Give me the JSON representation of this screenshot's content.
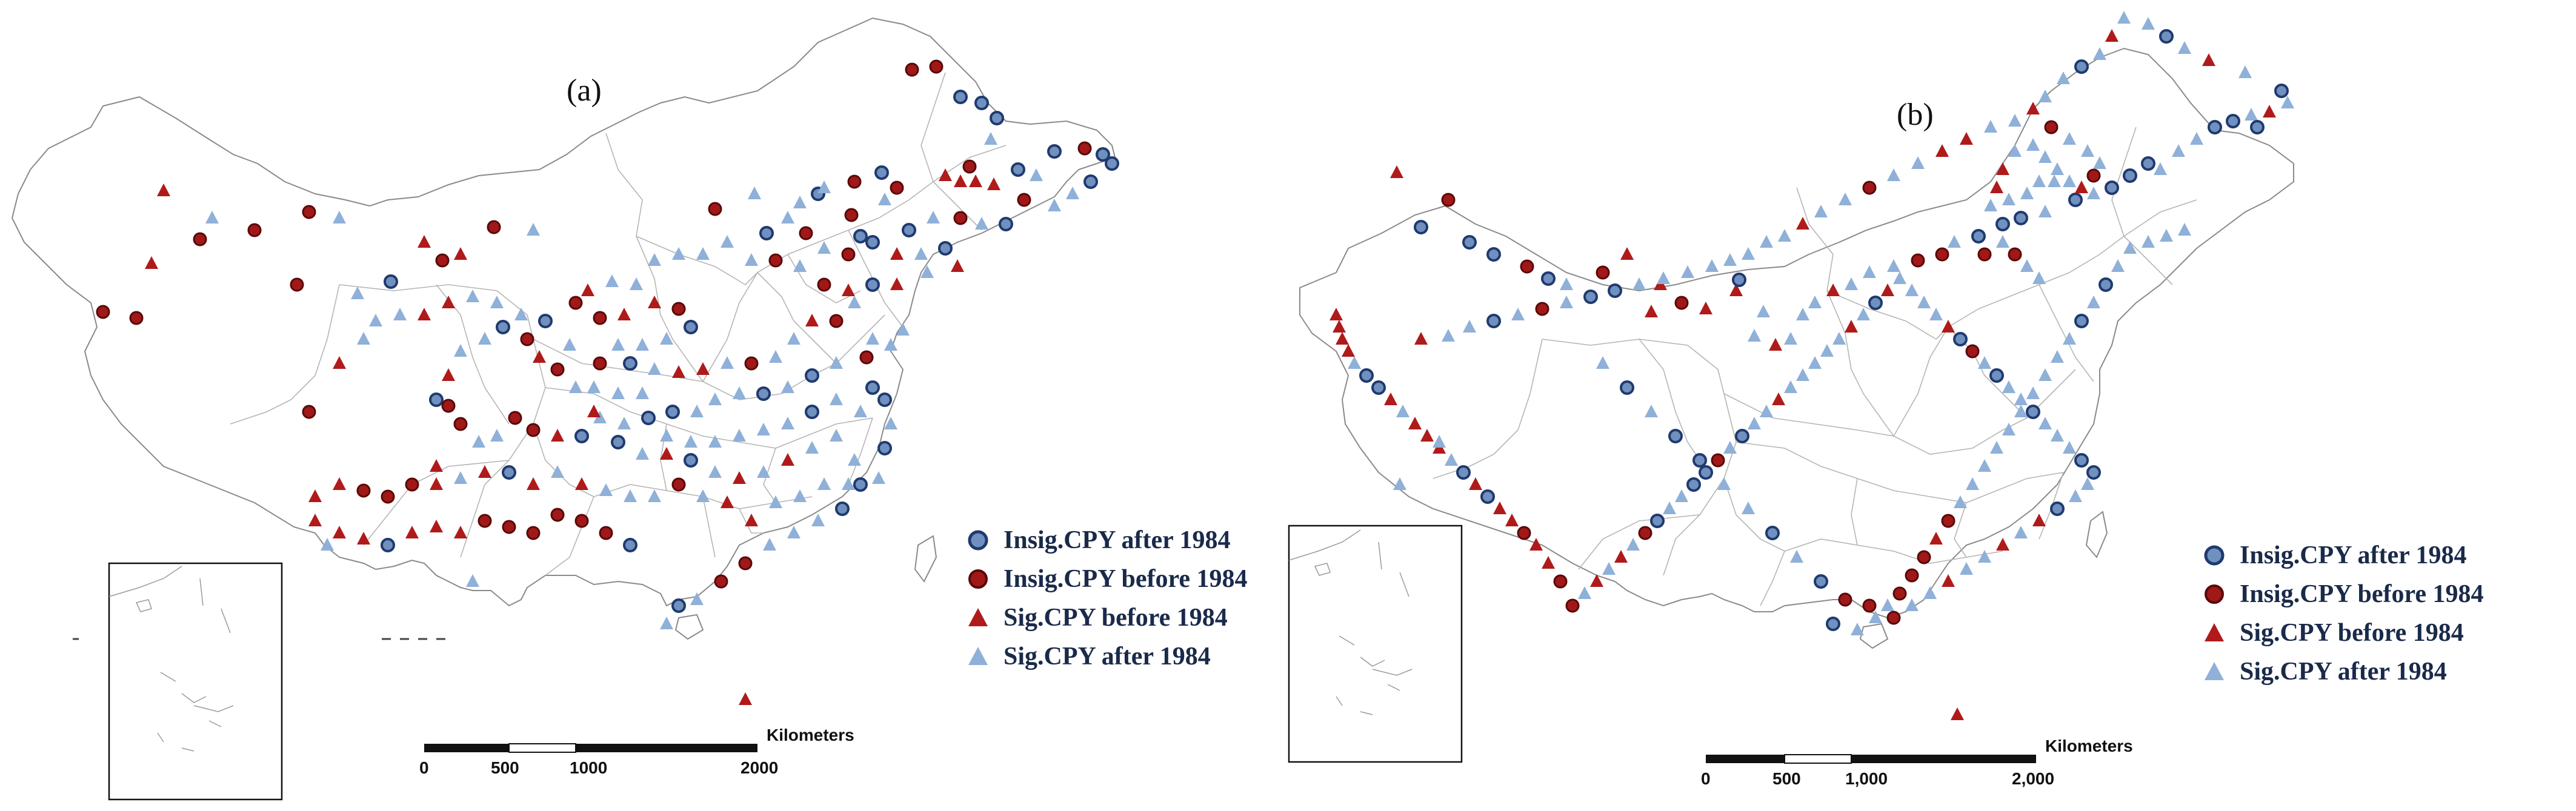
{
  "panels": [
    {
      "label": "(a)"
    },
    {
      "label": "(b)"
    }
  ],
  "legend": [
    {
      "label": "Insig.CPY after 1984",
      "symbol": "circle",
      "fill": "#7090c0",
      "stroke": "#1f3a6e"
    },
    {
      "label": "Insig.CPY before 1984",
      "symbol": "circle",
      "fill": "#a01818",
      "stroke": "#5a0808"
    },
    {
      "label": "Sig.CPY before 1984",
      "symbol": "triangle",
      "fill": "#b01a1a",
      "stroke": "#b01a1a"
    },
    {
      "label": "Sig.CPY after 1984",
      "symbol": "triangle",
      "fill": "#8fb0d8",
      "stroke": "#8fb0d8"
    }
  ],
  "scalebar": {
    "a": {
      "unit": "Kilometers",
      "ticks": [
        "0",
        "500",
        "1000",
        "2000"
      ]
    },
    "b": {
      "unit": "Kilometers",
      "ticks": [
        "0",
        "500",
        "1,000",
        "2,000"
      ]
    }
  },
  "colors": {
    "outline": "#8a8a8a",
    "border": "#b5b5b5"
  }
}
